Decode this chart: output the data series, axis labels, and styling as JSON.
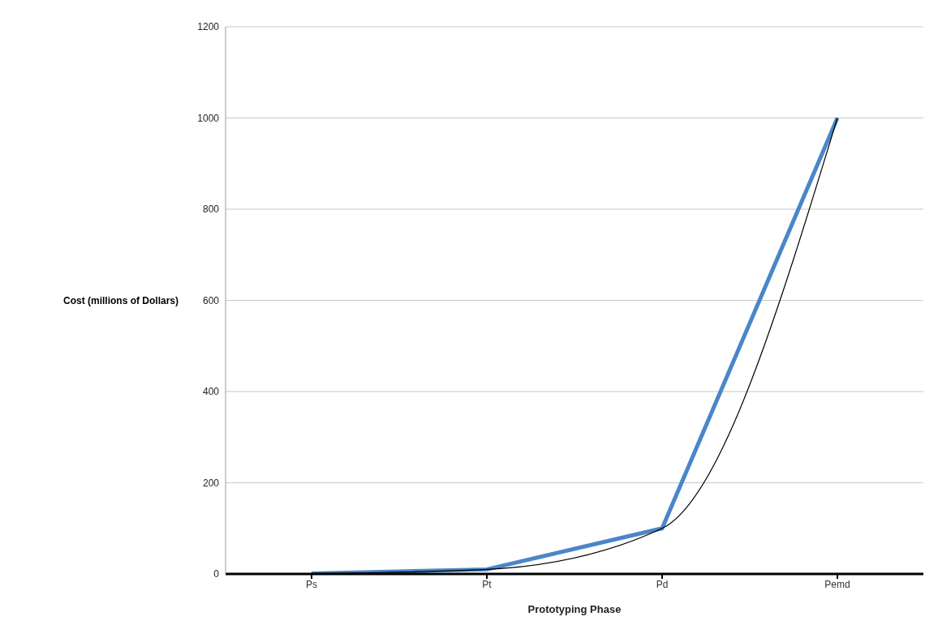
{
  "chart_data": {
    "type": "line",
    "xlabel": "Prototyping Phase",
    "ylabel": "Cost (millions of Dollars)",
    "categories": [
      "Ps",
      "Pt",
      "Pd",
      "Pemd"
    ],
    "series": [
      {
        "color": "#4a86c8",
        "values": [
          1,
          10,
          100,
          1000
        ]
      },
      {
        "color": "#000000",
        "values": [
          1,
          10,
          100,
          1000
        ],
        "line_style": "solid"
      }
    ],
    "ylim": [
      0,
      1200
    ],
    "yticks": [
      0,
      200,
      400,
      600,
      800,
      1000,
      1200
    ],
    "grid": "y",
    "marker": "none"
  }
}
